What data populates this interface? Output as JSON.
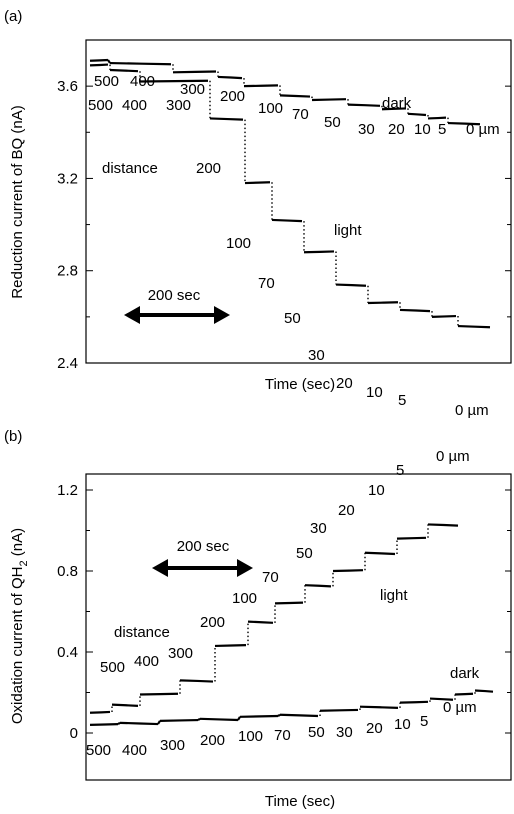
{
  "chart_data": [
    {
      "panel": "(a)",
      "type": "line",
      "ylabel": "Reduction current of BQ (nA)",
      "xlabel": "Time (sec)",
      "ylim": [
        2.4,
        3.8
      ],
      "yticks": [
        "2.4",
        "2.8",
        "3.2",
        "3.6"
      ],
      "scale_bar": "200 sec",
      "series_labels": {
        "dark": "dark",
        "light": "light",
        "distance": "distance"
      },
      "dark_distances": [
        "500",
        "400",
        "300",
        "200",
        "100",
        "70",
        "50",
        "30",
        "20",
        "10",
        "5",
        "0 µm"
      ],
      "light_distances": [
        "500",
        "400",
        "300",
        "200",
        "100",
        "70",
        "50",
        "30",
        "20",
        "10",
        "5",
        "0 µm"
      ],
      "dark_values": [
        3.71,
        3.7,
        3.66,
        3.64,
        3.6,
        3.56,
        3.54,
        3.52,
        3.5,
        3.48,
        3.46,
        3.44
      ],
      "light_values": [
        3.69,
        3.67,
        3.62,
        3.46,
        3.18,
        3.02,
        2.88,
        2.74,
        2.66,
        2.63,
        2.6,
        2.56
      ]
    },
    {
      "panel": "(b)",
      "type": "line",
      "ylabel": "Oxidation current of QH2 (nA)",
      "ylabel_main": "Oxidation current of QH",
      "ylabel_sub": "2",
      "ylabel_tail": " (nA)",
      "xlabel": "Time (sec)",
      "ylim": [
        -0.05,
        1.2
      ],
      "yticks": [
        "0",
        "0.4",
        "0.8",
        "1.2"
      ],
      "scale_bar": "200 sec",
      "series_labels": {
        "dark": "dark",
        "light": "light",
        "distance": "distance"
      },
      "dark_distances": [
        "500",
        "400",
        "300",
        "200",
        "100",
        "70",
        "50",
        "30",
        "20",
        "10",
        "5",
        "0 µm"
      ],
      "light_distances": [
        "500",
        "400",
        "300",
        "200",
        "100",
        "70",
        "50",
        "30",
        "20",
        "10",
        "5",
        "0 µm"
      ],
      "dark_values": [
        0.04,
        0.05,
        0.06,
        0.07,
        0.08,
        0.09,
        0.11,
        0.13,
        0.15,
        0.17,
        0.19,
        0.21
      ],
      "light_values": [
        0.1,
        0.14,
        0.19,
        0.26,
        0.43,
        0.55,
        0.64,
        0.73,
        0.8,
        0.89,
        0.96,
        1.03
      ]
    }
  ]
}
